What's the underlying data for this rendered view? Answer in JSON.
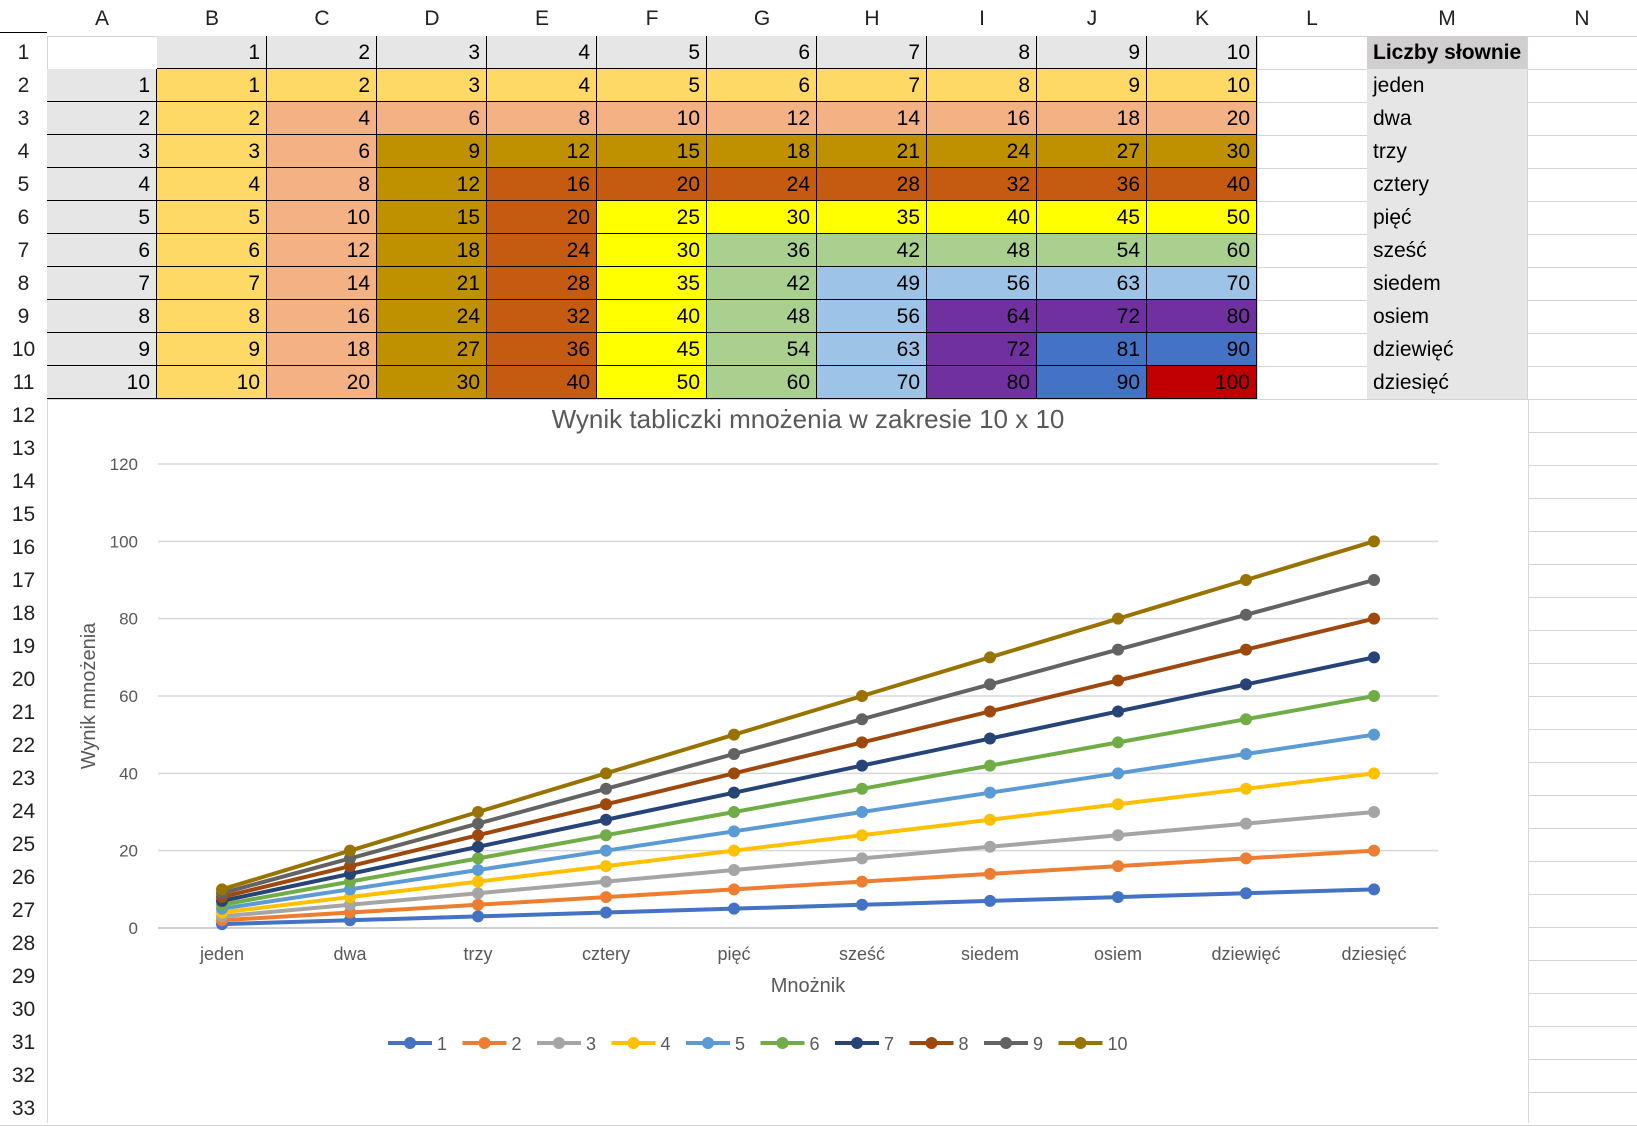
{
  "columns": [
    "A",
    "B",
    "C",
    "D",
    "E",
    "F",
    "G",
    "H",
    "I",
    "J",
    "K",
    "L",
    "M",
    "N"
  ],
  "row_numbers": [
    1,
    2,
    3,
    4,
    5,
    6,
    7,
    8,
    9,
    10,
    11,
    12,
    13,
    14,
    15,
    16,
    17,
    18,
    19,
    20,
    21,
    22,
    23,
    24,
    25,
    26,
    27,
    28,
    29,
    30,
    31,
    32,
    33
  ],
  "table": {
    "header_row": [
      1,
      2,
      3,
      4,
      5,
      6,
      7,
      8,
      9,
      10
    ],
    "row_labels": [
      1,
      2,
      3,
      4,
      5,
      6,
      7,
      8,
      9,
      10
    ],
    "words_header": "Liczby słownie",
    "words": [
      "jeden",
      "dwa",
      "trzy",
      "cztery",
      "pięć",
      "sześć",
      "siedem",
      "osiem",
      "dziewięć",
      "dziesięć"
    ],
    "fill_colors": [
      "#ffd966",
      "#f4b183",
      "#bf9000",
      "#c55a11",
      "#ffff00",
      "#a9d08e",
      "#9dc3e6",
      "#7030a0",
      "#4472c4",
      "#c00000"
    ],
    "header_fill": "#e7e6e6"
  },
  "chart_data": {
    "type": "line",
    "title": "Wynik tabliczki mnożenia w zakresie 10 x 10",
    "xlabel": "Mnożnik",
    "ylabel": "Wynik mnożenia",
    "categories": [
      "jeden",
      "dwa",
      "trzy",
      "cztery",
      "pięć",
      "sześć",
      "siedem",
      "osiem",
      "dziewięć",
      "dziesięć"
    ],
    "ylim": [
      0,
      120
    ],
    "yticks": [
      0,
      20,
      40,
      60,
      80,
      100,
      120
    ],
    "grid": true,
    "legend": "bottom",
    "series": [
      {
        "name": "1",
        "color": "#4472c4",
        "values": [
          1,
          2,
          3,
          4,
          5,
          6,
          7,
          8,
          9,
          10
        ]
      },
      {
        "name": "2",
        "color": "#ed7d31",
        "values": [
          2,
          4,
          6,
          8,
          10,
          12,
          14,
          16,
          18,
          20
        ]
      },
      {
        "name": "3",
        "color": "#a5a5a5",
        "values": [
          3,
          6,
          9,
          12,
          15,
          18,
          21,
          24,
          27,
          30
        ]
      },
      {
        "name": "4",
        "color": "#ffc000",
        "values": [
          4,
          8,
          12,
          16,
          20,
          24,
          28,
          32,
          36,
          40
        ]
      },
      {
        "name": "5",
        "color": "#5b9bd5",
        "values": [
          5,
          10,
          15,
          20,
          25,
          30,
          35,
          40,
          45,
          50
        ]
      },
      {
        "name": "6",
        "color": "#70ad47",
        "values": [
          6,
          12,
          18,
          24,
          30,
          36,
          42,
          48,
          54,
          60
        ]
      },
      {
        "name": "7",
        "color": "#264478",
        "values": [
          7,
          14,
          21,
          28,
          35,
          42,
          49,
          56,
          63,
          70
        ]
      },
      {
        "name": "8",
        "color": "#9e480e",
        "values": [
          8,
          16,
          24,
          32,
          40,
          48,
          56,
          64,
          72,
          80
        ]
      },
      {
        "name": "9",
        "color": "#636363",
        "values": [
          9,
          18,
          27,
          36,
          45,
          54,
          63,
          72,
          81,
          90
        ]
      },
      {
        "name": "10",
        "color": "#997300",
        "values": [
          10,
          20,
          30,
          40,
          50,
          60,
          70,
          80,
          90,
          100
        ]
      }
    ]
  }
}
